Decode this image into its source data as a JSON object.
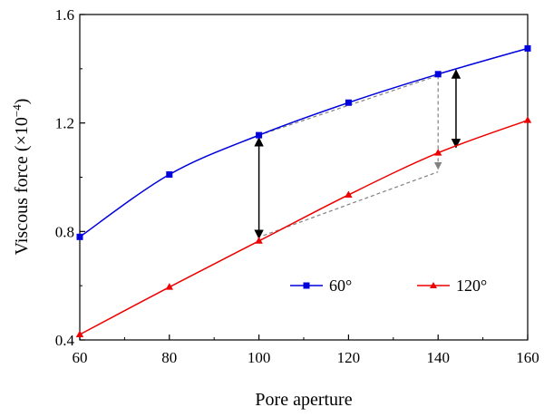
{
  "chart_data": {
    "type": "line",
    "xlabel": "Pore aperture",
    "ylabel_main": "Viscous force (×10",
    "ylabel_exp": "−4",
    "ylabel_close": ")",
    "xlim": [
      60,
      160
    ],
    "ylim": [
      0.4,
      1.6
    ],
    "x_ticks": [
      60,
      80,
      100,
      120,
      140,
      160
    ],
    "x_tick_labels": [
      "60",
      "80",
      "100",
      "120",
      "140",
      "160"
    ],
    "y_ticks": [
      0.4,
      0.8,
      1.2,
      1.6
    ],
    "y_tick_labels": [
      "0.4",
      "0.8",
      "1.2",
      "1.6"
    ],
    "grid": false,
    "legend_position": "bottom-right",
    "series": [
      {
        "name": "60°",
        "color": "#0000dd",
        "marker": "square",
        "x": [
          60,
          80,
          100,
          120,
          140,
          160
        ],
        "y": [
          0.78,
          1.01,
          1.155,
          1.275,
          1.38,
          1.475
        ]
      },
      {
        "name": "120°",
        "color": "#ee0000",
        "marker": "triangle",
        "x": [
          60,
          80,
          100,
          120,
          140,
          160
        ],
        "y": [
          0.42,
          0.595,
          0.765,
          0.935,
          1.09,
          1.21
        ]
      }
    ],
    "annotations": [
      {
        "type": "double-arrow",
        "color": "#000000",
        "x": 100,
        "y1": 0.775,
        "y2": 1.145
      },
      {
        "type": "double-arrow",
        "color": "#000000",
        "x": 144,
        "y1": 1.11,
        "y2": 1.395
      },
      {
        "type": "dashed-line",
        "color": "#808080",
        "points": [
          [
            100,
            1.155
          ],
          [
            140,
            1.375
          ]
        ]
      },
      {
        "type": "dashed-arrow",
        "color": "#808080",
        "points": [
          [
            140,
            1.375
          ],
          [
            140,
            1.03
          ]
        ]
      },
      {
        "type": "dashed-line",
        "color": "#808080",
        "points": [
          [
            101,
            0.785
          ],
          [
            140,
            1.02
          ]
        ]
      }
    ]
  }
}
